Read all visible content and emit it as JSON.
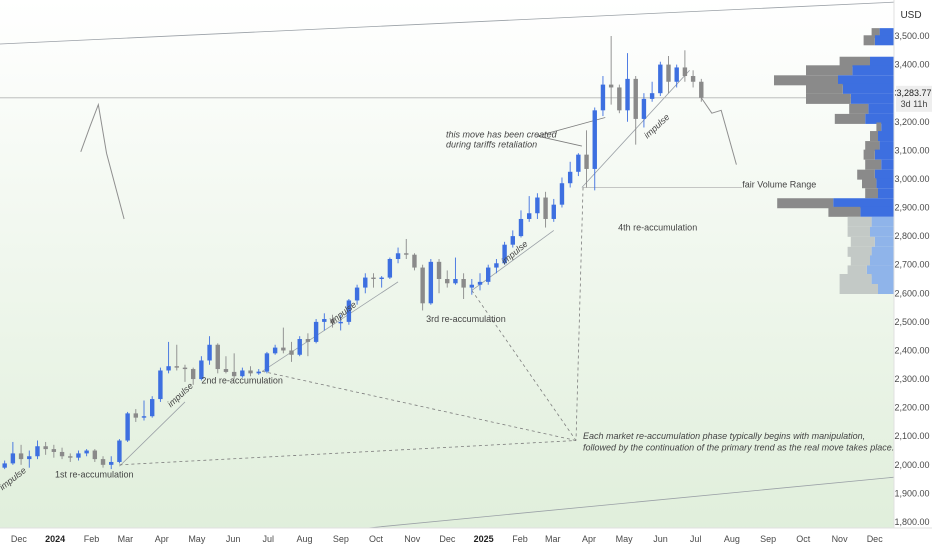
{
  "currency": "USD",
  "price_tag": {
    "price": "3,283.77",
    "countdown": "3d 11h"
  },
  "colors": {
    "up": "#3d6fe0",
    "down": "#8a8a8a",
    "bg_top": "#ffffff",
    "bg_bottom": "#dfeeda",
    "axis_line": "#cccccc"
  },
  "annotations": {
    "impulse_1": "impulse",
    "impulse_2": "impulse",
    "impulse_3": "impulse",
    "impulse_4": "impulse",
    "impulse_5": "impulse",
    "reacc_1": "1st re-accumulation",
    "reacc_2": "2nd re-accumulation",
    "reacc_3": "3rd re-accumulation",
    "reacc_4": "4th re-accumulation",
    "tariffs_1": "this move has been created",
    "tariffs_2": "during tariffs retaliation",
    "fair_volume": "fair Volume Range",
    "note_1": "Each market re-accumulation phase typically begins with manipulation,",
    "note_2": "followed by the continuation of the primary trend as the real move takes place."
  },
  "chart_data": {
    "type": "candlestick",
    "title": "",
    "ylabel": "USD",
    "y_scale": "linear",
    "ylim": [
      1780,
      3580
    ],
    "y_ticks": [
      "3,500.00",
      "3,400.00",
      "3,300.00",
      "3,200.00",
      "3,100.00",
      "3,000.00",
      "2,900.00",
      "2,800.00",
      "2,700.00",
      "2,600.00",
      "2,500.00",
      "2,400.00",
      "2,300.00",
      "2,200.00",
      "2,100.00",
      "2,000.00",
      "1,900.00",
      "1,800.00"
    ],
    "x_ticks": [
      "Dec",
      "2024",
      "Feb",
      "Mar",
      "Apr",
      "May",
      "Jun",
      "Jul",
      "Aug",
      "Sep",
      "Oct",
      "Nov",
      "Dec",
      "2025",
      "Feb",
      "Mar",
      "Apr",
      "May",
      "Jun",
      "Jul",
      "Aug",
      "Sep",
      "Oct",
      "Nov",
      "Dec"
    ],
    "grid": false,
    "candles": [
      {
        "date": "2023-11-24",
        "o": 1990,
        "h": 2015,
        "l": 1985,
        "c": 2005
      },
      {
        "date": "2023-12-01",
        "o": 2005,
        "h": 2080,
        "l": 2000,
        "c": 2040
      },
      {
        "date": "2023-12-08",
        "o": 2040,
        "h": 2070,
        "l": 2000,
        "c": 2020
      },
      {
        "date": "2023-12-15",
        "o": 2020,
        "h": 2050,
        "l": 1990,
        "c": 2030
      },
      {
        "date": "2023-12-22",
        "o": 2030,
        "h": 2085,
        "l": 2020,
        "c": 2065
      },
      {
        "date": "2023-12-29",
        "o": 2065,
        "h": 2080,
        "l": 2035,
        "c": 2055
      },
      {
        "date": "2024-01-05",
        "o": 2055,
        "h": 2070,
        "l": 2025,
        "c": 2045
      },
      {
        "date": "2024-01-12",
        "o": 2045,
        "h": 2060,
        "l": 2020,
        "c": 2030
      },
      {
        "date": "2024-01-19",
        "o": 2030,
        "h": 2040,
        "l": 2010,
        "c": 2025
      },
      {
        "date": "2024-01-26",
        "o": 2025,
        "h": 2050,
        "l": 2015,
        "c": 2040
      },
      {
        "date": "2024-02-02",
        "o": 2040,
        "h": 2055,
        "l": 2030,
        "c": 2050
      },
      {
        "date": "2024-02-09",
        "o": 2050,
        "h": 2055,
        "l": 2010,
        "c": 2020
      },
      {
        "date": "2024-02-16",
        "o": 2020,
        "h": 2030,
        "l": 1990,
        "c": 2000
      },
      {
        "date": "2024-02-23",
        "o": 2000,
        "h": 2030,
        "l": 1985,
        "c": 2010
      },
      {
        "date": "2024-03-01",
        "o": 2010,
        "h": 2090,
        "l": 2005,
        "c": 2085
      },
      {
        "date": "2024-03-08",
        "o": 2085,
        "h": 2185,
        "l": 2080,
        "c": 2180
      },
      {
        "date": "2024-03-15",
        "o": 2180,
        "h": 2195,
        "l": 2150,
        "c": 2165
      },
      {
        "date": "2024-03-22",
        "o": 2165,
        "h": 2225,
        "l": 2155,
        "c": 2170
      },
      {
        "date": "2024-03-29",
        "o": 2170,
        "h": 2240,
        "l": 2165,
        "c": 2230
      },
      {
        "date": "2024-04-05",
        "o": 2230,
        "h": 2340,
        "l": 2220,
        "c": 2330
      },
      {
        "date": "2024-04-12",
        "o": 2330,
        "h": 2430,
        "l": 2320,
        "c": 2345
      },
      {
        "date": "2024-04-19",
        "o": 2345,
        "h": 2420,
        "l": 2330,
        "c": 2340
      },
      {
        "date": "2024-04-26",
        "o": 2340,
        "h": 2350,
        "l": 2290,
        "c": 2335
      },
      {
        "date": "2024-05-03",
        "o": 2335,
        "h": 2340,
        "l": 2280,
        "c": 2300
      },
      {
        "date": "2024-05-10",
        "o": 2300,
        "h": 2380,
        "l": 2295,
        "c": 2365
      },
      {
        "date": "2024-05-17",
        "o": 2365,
        "h": 2450,
        "l": 2350,
        "c": 2420
      },
      {
        "date": "2024-05-24",
        "o": 2420,
        "h": 2425,
        "l": 2320,
        "c": 2335
      },
      {
        "date": "2024-05-31",
        "o": 2335,
        "h": 2380,
        "l": 2320,
        "c": 2325
      },
      {
        "date": "2024-06-07",
        "o": 2325,
        "h": 2390,
        "l": 2300,
        "c": 2310
      },
      {
        "date": "2024-06-14",
        "o": 2310,
        "h": 2340,
        "l": 2305,
        "c": 2330
      },
      {
        "date": "2024-06-21",
        "o": 2330,
        "h": 2345,
        "l": 2310,
        "c": 2320
      },
      {
        "date": "2024-06-28",
        "o": 2320,
        "h": 2335,
        "l": 2315,
        "c": 2326
      },
      {
        "date": "2024-07-05",
        "o": 2326,
        "h": 2395,
        "l": 2320,
        "c": 2390
      },
      {
        "date": "2024-07-12",
        "o": 2390,
        "h": 2420,
        "l": 2385,
        "c": 2410
      },
      {
        "date": "2024-07-19",
        "o": 2410,
        "h": 2480,
        "l": 2390,
        "c": 2400
      },
      {
        "date": "2024-07-26",
        "o": 2400,
        "h": 2430,
        "l": 2360,
        "c": 2385
      },
      {
        "date": "2024-08-02",
        "o": 2385,
        "h": 2450,
        "l": 2380,
        "c": 2440
      },
      {
        "date": "2024-08-09",
        "o": 2440,
        "h": 2460,
        "l": 2380,
        "c": 2430
      },
      {
        "date": "2024-08-16",
        "o": 2430,
        "h": 2510,
        "l": 2425,
        "c": 2500
      },
      {
        "date": "2024-08-23",
        "o": 2500,
        "h": 2530,
        "l": 2470,
        "c": 2510
      },
      {
        "date": "2024-08-30",
        "o": 2510,
        "h": 2525,
        "l": 2480,
        "c": 2495
      },
      {
        "date": "2024-09-06",
        "o": 2495,
        "h": 2525,
        "l": 2470,
        "c": 2500
      },
      {
        "date": "2024-09-13",
        "o": 2500,
        "h": 2580,
        "l": 2490,
        "c": 2575
      },
      {
        "date": "2024-09-20",
        "o": 2575,
        "h": 2630,
        "l": 2560,
        "c": 2620
      },
      {
        "date": "2024-09-27",
        "o": 2620,
        "h": 2670,
        "l": 2600,
        "c": 2655
      },
      {
        "date": "2024-10-04",
        "o": 2655,
        "h": 2670,
        "l": 2620,
        "c": 2650
      },
      {
        "date": "2024-10-11",
        "o": 2650,
        "h": 2660,
        "l": 2620,
        "c": 2655
      },
      {
        "date": "2024-10-18",
        "o": 2655,
        "h": 2725,
        "l": 2650,
        "c": 2720
      },
      {
        "date": "2024-10-25",
        "o": 2720,
        "h": 2760,
        "l": 2705,
        "c": 2740
      },
      {
        "date": "2024-11-01",
        "o": 2740,
        "h": 2790,
        "l": 2720,
        "c": 2735
      },
      {
        "date": "2024-11-08",
        "o": 2735,
        "h": 2740,
        "l": 2680,
        "c": 2690
      },
      {
        "date": "2024-11-15",
        "o": 2690,
        "h": 2700,
        "l": 2540,
        "c": 2565
      },
      {
        "date": "2024-11-22",
        "o": 2565,
        "h": 2720,
        "l": 2560,
        "c": 2710
      },
      {
        "date": "2024-11-29",
        "o": 2710,
        "h": 2720,
        "l": 2600,
        "c": 2650
      },
      {
        "date": "2024-12-06",
        "o": 2650,
        "h": 2680,
        "l": 2620,
        "c": 2635
      },
      {
        "date": "2024-12-13",
        "o": 2635,
        "h": 2725,
        "l": 2630,
        "c": 2650
      },
      {
        "date": "2024-12-20",
        "o": 2650,
        "h": 2670,
        "l": 2580,
        "c": 2620
      },
      {
        "date": "2024-12-27",
        "o": 2620,
        "h": 2650,
        "l": 2595,
        "c": 2630
      },
      {
        "date": "2025-01-03",
        "o": 2630,
        "h": 2670,
        "l": 2610,
        "c": 2640
      },
      {
        "date": "2025-01-10",
        "o": 2640,
        "h": 2700,
        "l": 2630,
        "c": 2690
      },
      {
        "date": "2025-01-17",
        "o": 2690,
        "h": 2720,
        "l": 2670,
        "c": 2705
      },
      {
        "date": "2025-01-24",
        "o": 2705,
        "h": 2780,
        "l": 2700,
        "c": 2770
      },
      {
        "date": "2025-01-31",
        "o": 2770,
        "h": 2820,
        "l": 2760,
        "c": 2800
      },
      {
        "date": "2025-02-07",
        "o": 2800,
        "h": 2890,
        "l": 2795,
        "c": 2860
      },
      {
        "date": "2025-02-14",
        "o": 2860,
        "h": 2940,
        "l": 2850,
        "c": 2880
      },
      {
        "date": "2025-02-21",
        "o": 2880,
        "h": 2950,
        "l": 2860,
        "c": 2935
      },
      {
        "date": "2025-02-28",
        "o": 2935,
        "h": 2955,
        "l": 2830,
        "c": 2860
      },
      {
        "date": "2025-03-07",
        "o": 2860,
        "h": 2930,
        "l": 2850,
        "c": 2910
      },
      {
        "date": "2025-03-14",
        "o": 2910,
        "h": 3005,
        "l": 2900,
        "c": 2985
      },
      {
        "date": "2025-03-21",
        "o": 2985,
        "h": 3060,
        "l": 2970,
        "c": 3025
      },
      {
        "date": "2025-03-28",
        "o": 3025,
        "h": 3090,
        "l": 3010,
        "c": 3085
      },
      {
        "date": "2025-04-04",
        "o": 3085,
        "h": 3170,
        "l": 2970,
        "c": 3035
      },
      {
        "date": "2025-04-11",
        "o": 3035,
        "h": 3250,
        "l": 2960,
        "c": 3240
      },
      {
        "date": "2025-04-18",
        "o": 3240,
        "h": 3360,
        "l": 3220,
        "c": 3330
      },
      {
        "date": "2025-04-25",
        "o": 3330,
        "h": 3500,
        "l": 3260,
        "c": 3320
      },
      {
        "date": "2025-05-02",
        "o": 3320,
        "h": 3330,
        "l": 3230,
        "c": 3240
      },
      {
        "date": "2025-05-09",
        "o": 3240,
        "h": 3440,
        "l": 3200,
        "c": 3350
      },
      {
        "date": "2025-05-16",
        "o": 3350,
        "h": 3360,
        "l": 3120,
        "c": 3210
      },
      {
        "date": "2025-05-23",
        "o": 3210,
        "h": 3300,
        "l": 3180,
        "c": 3280
      },
      {
        "date": "2025-05-30",
        "o": 3280,
        "h": 3340,
        "l": 3270,
        "c": 3300
      },
      {
        "date": "2025-06-06",
        "o": 3300,
        "h": 3410,
        "l": 3290,
        "c": 3400
      },
      {
        "date": "2025-06-13",
        "o": 3400,
        "h": 3430,
        "l": 3300,
        "c": 3340
      },
      {
        "date": "2025-06-20",
        "o": 3340,
        "h": 3400,
        "l": 3320,
        "c": 3390
      },
      {
        "date": "2025-06-27",
        "o": 3390,
        "h": 3450,
        "l": 3340,
        "c": 3360
      },
      {
        "date": "2025-07-04",
        "o": 3360,
        "h": 3380,
        "l": 3320,
        "c": 3340
      },
      {
        "date": "2025-07-11",
        "o": 3340,
        "h": 3350,
        "l": 3270,
        "c": 3284
      }
    ],
    "volume_profile": [
      {
        "price": 3510,
        "up": 18,
        "down": 10
      },
      {
        "price": 3485,
        "up": 24,
        "down": 14
      },
      {
        "price": 3410,
        "up": 30,
        "down": 38
      },
      {
        "price": 3380,
        "up": 52,
        "down": 58
      },
      {
        "price": 3345,
        "up": 70,
        "down": 80
      },
      {
        "price": 3315,
        "up": 64,
        "down": 46
      },
      {
        "price": 3280,
        "up": 54,
        "down": 56
      },
      {
        "price": 3245,
        "up": 32,
        "down": 24
      },
      {
        "price": 3210,
        "up": 36,
        "down": 38
      },
      {
        "price": 3180,
        "up": 16,
        "down": 6
      },
      {
        "price": 3150,
        "up": 20,
        "down": 10
      },
      {
        "price": 3115,
        "up": 18,
        "down": 18
      },
      {
        "price": 3085,
        "up": 24,
        "down": 14
      },
      {
        "price": 3050,
        "up": 16,
        "down": 20
      },
      {
        "price": 3015,
        "up": 24,
        "down": 22
      },
      {
        "price": 2985,
        "up": 22,
        "down": 18
      },
      {
        "price": 2950,
        "up": 20,
        "down": 16
      },
      {
        "price": 2915,
        "up": 76,
        "down": 70
      },
      {
        "price": 2885,
        "up": 42,
        "down": 40
      },
      {
        "price": 2850,
        "up": 28,
        "down": 30
      },
      {
        "price": 2815,
        "up": 30,
        "down": 28
      },
      {
        "price": 2780,
        "up": 24,
        "down": 30
      },
      {
        "price": 2745,
        "up": 28,
        "down": 30
      },
      {
        "price": 2715,
        "up": 30,
        "down": 24
      },
      {
        "price": 2680,
        "up": 34,
        "down": 24
      },
      {
        "price": 2650,
        "up": 28,
        "down": 40
      },
      {
        "price": 2615,
        "up": 20,
        "down": 48
      }
    ],
    "trendlines": [
      {
        "name": "upper_channel",
        "from": [
          "2023-11-20",
          3472
        ],
        "to": [
          "2025-12-31",
          3620
        ]
      },
      {
        "name": "lower_channel",
        "from": [
          "2023-11-20",
          1655
        ],
        "to": [
          "2025-12-31",
          1960
        ]
      },
      {
        "name": "support_1",
        "from": [
          "2024-03-01",
          1995
        ],
        "to": [
          "2024-04-26",
          2220
        ]
      },
      {
        "name": "support_2",
        "from": [
          "2024-07-01",
          2327
        ],
        "to": [
          "2024-10-25",
          2640
        ]
      },
      {
        "name": "support_3",
        "from": [
          "2024-12-27",
          2610
        ],
        "to": [
          "2025-03-07",
          2820
        ]
      },
      {
        "name": "support_4",
        "from": [
          "2025-03-31",
          2970
        ],
        "to": [
          "2025-07-01",
          3380
        ]
      }
    ],
    "hlines": [
      {
        "price": 3283.77,
        "from": "2023-11-20",
        "to": "2025-12-31"
      },
      {
        "price": 2970,
        "from": "2025-04-01",
        "to": "2025-08-15"
      }
    ],
    "projection_paths": [
      [
        [
          "2024-01-28",
          3095
        ],
        [
          "2024-02-05",
          3185
        ],
        [
          "2024-02-12",
          3260
        ],
        [
          "2024-02-19",
          3090
        ],
        [
          "2024-03-05",
          2860
        ]
      ],
      [
        [
          "2025-07-11",
          3284
        ],
        [
          "2025-07-20",
          3230
        ],
        [
          "2025-07-28",
          3240
        ],
        [
          "2025-08-10",
          3050
        ]
      ]
    ],
    "dashed_pointers": [
      {
        "from": [
          "2024-07-01",
          2327
        ],
        "to": [
          "2025-03-26",
          2085
        ]
      },
      {
        "from": [
          "2024-03-01",
          2000
        ],
        "to": [
          "2025-03-26",
          2085
        ]
      },
      {
        "from": [
          "2024-12-27",
          2610
        ],
        "to": [
          "2025-03-26",
          2085
        ]
      },
      {
        "from": [
          "2025-04-01",
          2970
        ],
        "to": [
          "2025-03-26",
          2085
        ]
      }
    ],
    "solid_pointers": [
      {
        "from": [
          "2025-02-21",
          3150
        ],
        "to": [
          "2025-03-31",
          3115
        ]
      },
      {
        "from": [
          "2025-02-21",
          3150
        ],
        "to": [
          "2025-04-20",
          3215
        ]
      }
    ],
    "text_anchors": [
      {
        "key": "impulse_1",
        "at": [
          "2023-11-22",
          1910
        ],
        "angle": -38
      },
      {
        "key": "reacc_1",
        "at": [
          "2024-01-06",
          1955
        ],
        "angle": 0
      },
      {
        "key": "impulse_2",
        "at": [
          "2024-04-14",
          2200
        ],
        "angle": -43
      },
      {
        "key": "reacc_2",
        "at": [
          "2024-05-10",
          2285
        ],
        "angle": 0
      },
      {
        "key": "impulse_3",
        "at": [
          "2024-08-30",
          2490
        ],
        "angle": -38
      },
      {
        "key": "reacc_3",
        "at": [
          "2024-11-18",
          2500
        ],
        "angle": 0
      },
      {
        "key": "impulse_4",
        "at": [
          "2025-01-24",
          2700
        ],
        "angle": -40
      },
      {
        "key": "reacc_4",
        "at": [
          "2025-05-01",
          2820
        ],
        "angle": 0
      },
      {
        "key": "impulse_5",
        "at": [
          "2025-05-26",
          3140
        ],
        "angle": -43
      },
      {
        "key": "tariffs_1",
        "at": [
          "2024-12-05",
          3145
        ],
        "angle": 0
      },
      {
        "key": "tariffs_2",
        "at": [
          "2024-12-05",
          3110
        ],
        "angle": 0
      },
      {
        "key": "fair_volume",
        "at": [
          "2025-08-15",
          2970
        ],
        "angle": 0
      },
      {
        "key": "note_1",
        "at": [
          "2025-04-01",
          2090
        ],
        "angle": 0
      },
      {
        "key": "note_2",
        "at": [
          "2025-04-01",
          2050
        ],
        "angle": 0
      }
    ]
  }
}
